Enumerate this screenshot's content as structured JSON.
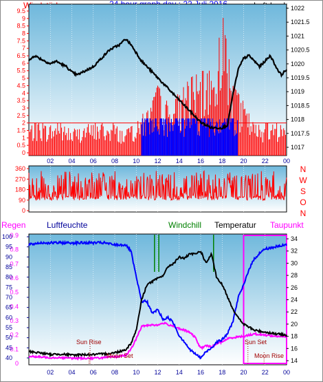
{
  "header": {
    "left": "Windstärke",
    "center": "24 hour graph day : 22 Juli 2016",
    "right": "Luftdruck"
  },
  "colors": {
    "bg": "#ffffff",
    "frame": "#000000",
    "plot_top": "#6fb8dc",
    "plot_bottom": "#ffffff",
    "red": "#ff0000",
    "blue": "#0000ff",
    "black": "#000000",
    "green": "#008000",
    "magenta": "#ff00ff",
    "maroon": "#a00000",
    "navy": "#000099"
  },
  "compass": [
    "N",
    "W",
    "S",
    "O",
    "N"
  ],
  "bottom_labels": {
    "regen": "Regen",
    "luftfeuchte": "Luftfeuchte",
    "windchill": "Windchill",
    "temperatur": "Temperatur",
    "taupunkt": "Taupunkt"
  },
  "annotations": {
    "sun_rise": "Sun Rise",
    "moon_set": "Moon Set",
    "sun_set": "Sun Set",
    "moon_rise": "Moon Rise"
  },
  "chart_data": [
    {
      "id": "wind-pressure",
      "type": "line",
      "x_ticks": [
        "02",
        "04",
        "06",
        "08",
        "10",
        "12",
        "14",
        "16",
        "18",
        "20",
        "22",
        "00"
      ],
      "y_left": {
        "label": "Windstärke",
        "ticks": [
          "0",
          "0.5",
          "1",
          "1.5",
          "2",
          "2.5",
          "3",
          "3.5",
          "4",
          "4.5",
          "5",
          "5.5",
          "6",
          "6.5",
          "7",
          "7.5",
          "8",
          "8.5",
          "9",
          "9.5"
        ],
        "range": [
          0,
          9.5
        ]
      },
      "y_right": {
        "label": "Luftdruck",
        "ticks": [
          "1017",
          "1017.5",
          "1018",
          "1018.5",
          "1019",
          "1019.5",
          "1020",
          "1020.5",
          "1021",
          "1021.5",
          "1022"
        ],
        "range": [
          1017,
          1022
        ]
      },
      "pressure": {
        "x": [
          0,
          0.5,
          1,
          1.5,
          2,
          2.5,
          3,
          3.5,
          4,
          4.5,
          5,
          5.5,
          6,
          6.5,
          7,
          7.5,
          8,
          8.5,
          9,
          9.5,
          10,
          10.5,
          11,
          11.5,
          12,
          12.5,
          13,
          13.5,
          14,
          14.5,
          15,
          15.5,
          16,
          16.5,
          17,
          17.5,
          18,
          18.5,
          19,
          19.5,
          20,
          20.5,
          21,
          21.5,
          22,
          22.5,
          23,
          23.5,
          24
        ],
        "y": [
          1020.1,
          1020.3,
          1020.2,
          1020.1,
          1020.0,
          1020.1,
          1020.0,
          1019.9,
          1019.7,
          1019.6,
          1019.7,
          1019.8,
          1019.9,
          1020.1,
          1020.3,
          1020.5,
          1020.6,
          1020.7,
          1020.9,
          1020.7,
          1020.4,
          1020.1,
          1019.9,
          1019.7,
          1019.5,
          1019.3,
          1019.1,
          1018.9,
          1018.7,
          1018.5,
          1018.3,
          1018.1,
          1017.9,
          1017.8,
          1017.7,
          1017.7,
          1017.7,
          1017.8,
          1018.9,
          1019.8,
          1020.2,
          1020.3,
          1020.1,
          1019.9,
          1020.1,
          1020.3,
          1019.9,
          1019.6,
          1019.8
        ]
      },
      "wind_speed_peaks": {
        "x": [
          0,
          1,
          2,
          3,
          4,
          5,
          6,
          7,
          8,
          9,
          10,
          11,
          12,
          13,
          14,
          15,
          16,
          17,
          18,
          19,
          20,
          21,
          22,
          23,
          24
        ],
        "y": [
          2.0,
          2.0,
          2.0,
          2.0,
          1.5,
          2.0,
          2.0,
          2.0,
          2.0,
          1.5,
          2.0,
          3.0,
          4.5,
          3.5,
          4.0,
          5.0,
          5.5,
          5.5,
          9.5,
          4.5,
          3.5,
          2.0,
          2.0,
          2.0,
          2.0
        ]
      },
      "wind_gust_blue": {
        "x_range": [
          10.5,
          19.5
        ],
        "y": 3.5
      }
    },
    {
      "id": "wind-direction",
      "type": "line",
      "x_ticks": [
        "02",
        "04",
        "06",
        "08",
        "10",
        "12",
        "14",
        "16",
        "18",
        "20",
        "22",
        "00"
      ],
      "y_left": {
        "ticks": [
          "0",
          "90",
          "180",
          "270",
          "360"
        ],
        "range": [
          0,
          360
        ]
      }
    },
    {
      "id": "climate",
      "type": "line",
      "x_ticks": [
        "02",
        "04",
        "06",
        "08",
        "10",
        "12",
        "14",
        "16",
        "18",
        "20",
        "22",
        "00"
      ],
      "y_left_rain": {
        "ticks": [
          "0",
          "0.1",
          "0.2",
          "0.3",
          "0.4",
          "0.5",
          "0.6",
          "0.7",
          "0.8",
          "0.9"
        ],
        "range": [
          0,
          0.9
        ]
      },
      "y_left_humidity": {
        "ticks": [
          "40",
          "45",
          "50",
          "55",
          "60",
          "65",
          "70",
          "75",
          "80",
          "85",
          "90",
          "95",
          "100"
        ],
        "range": [
          40,
          100
        ]
      },
      "y_right_temp": {
        "ticks": [
          "14",
          "16",
          "18",
          "20",
          "22",
          "24",
          "26",
          "28",
          "30",
          "32",
          "34"
        ],
        "range": [
          14,
          34
        ]
      },
      "humidity": {
        "x": [
          0,
          1,
          2,
          3,
          4,
          5,
          6,
          7,
          8,
          9,
          9.5,
          10,
          10.5,
          11,
          11.5,
          12,
          12.5,
          13,
          13.5,
          14,
          14.5,
          15,
          15.5,
          16,
          16.5,
          17,
          17.5,
          18,
          18.5,
          19,
          19.5,
          20,
          20.5,
          21,
          21.5,
          22,
          23,
          24
        ],
        "y": [
          96,
          97,
          97,
          97,
          97,
          97,
          97,
          97,
          96,
          96,
          93,
          80,
          68,
          68,
          62,
          64,
          59,
          60,
          57,
          51,
          48,
          44,
          42,
          40,
          43,
          45,
          48,
          49,
          52,
          58,
          70,
          76,
          84,
          89,
          92,
          94,
          95,
          96
        ]
      },
      "temperature": {
        "x": [
          0,
          1,
          2,
          3,
          4,
          5,
          6,
          7,
          8,
          9,
          9.5,
          10,
          10.5,
          11,
          11.5,
          12,
          12.5,
          13,
          13.5,
          14,
          14.5,
          15,
          15.5,
          16,
          16.5,
          17,
          17.5,
          18,
          18.5,
          19,
          19.5,
          20,
          20.5,
          21,
          22,
          23,
          24
        ],
        "y": [
          15.5,
          15.3,
          15.0,
          15.1,
          14.9,
          15.0,
          15.0,
          15.1,
          15.3,
          15.8,
          16.8,
          19.0,
          24.0,
          26.5,
          27.0,
          27.5,
          28.0,
          29.5,
          30.0,
          31.0,
          30.8,
          31.5,
          31.5,
          32.0,
          30.0,
          31.5,
          27.5,
          26.5,
          24.5,
          22.5,
          21.0,
          20.0,
          19.5,
          19.0,
          18.7,
          18.4,
          18.2
        ]
      },
      "dewpoint": {
        "x": [
          0,
          1,
          2,
          3,
          4,
          5,
          6,
          7,
          8,
          9,
          9.5,
          10,
          10.5,
          11,
          11.5,
          12,
          12.5,
          13,
          13.5,
          14,
          14.5,
          15,
          15.5,
          16,
          16.5,
          17,
          17.5,
          18,
          18.5,
          19,
          19.5,
          20,
          20.5,
          21,
          22,
          23,
          24
        ],
        "y": [
          14.7,
          14.6,
          14.5,
          14.5,
          14.4,
          14.4,
          14.4,
          14.5,
          14.6,
          14.9,
          15.8,
          17.6,
          19.6,
          19.8,
          19.9,
          19.8,
          20.2,
          19.9,
          19.7,
          19.2,
          19.0,
          18.6,
          17.8,
          16.0,
          16.5,
          16.2,
          16.8,
          17.1,
          17.6,
          17.8,
          17.9,
          18.0,
          18.2,
          18.4,
          18.2,
          18.0,
          17.9
        ]
      },
      "windchill_events": [
        11.7,
        12.1,
        17.2
      ],
      "rain": {
        "x_range": [
          20.0,
          24.0
        ],
        "y": 0.9
      }
    }
  ]
}
